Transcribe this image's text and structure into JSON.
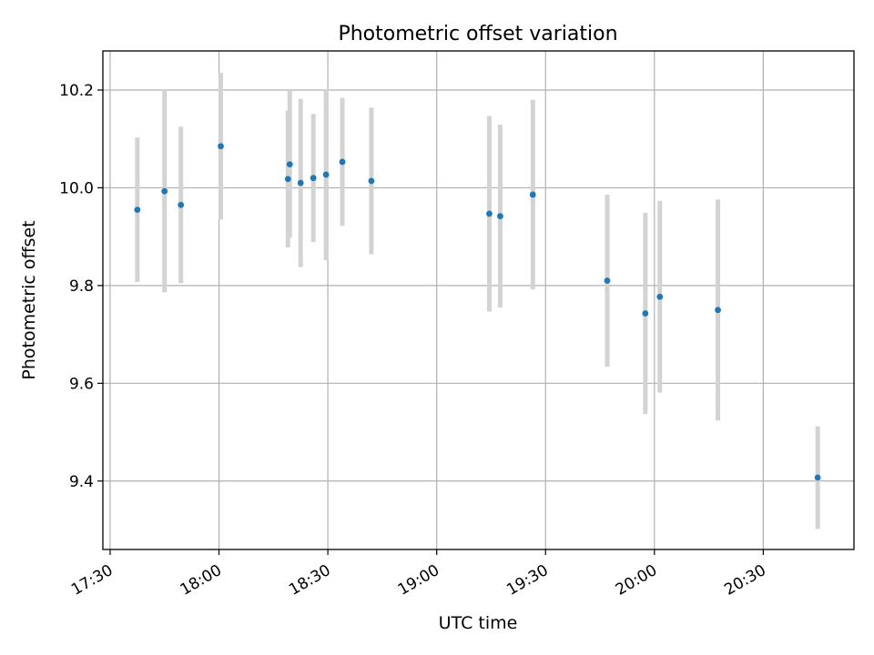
{
  "chart_data": {
    "type": "scatter",
    "title": "Photometric offset variation",
    "xlabel": "UTC time",
    "ylabel": "Photometric offset",
    "x_ticks": [
      "17:30",
      "18:00",
      "18:30",
      "19:00",
      "19:30",
      "20:00",
      "20:30"
    ],
    "y_ticks": [
      "9.4",
      "9.6",
      "9.8",
      "10.0",
      "10.2"
    ],
    "xlim": [
      "17:28",
      "20:55"
    ],
    "ylim": [
      9.26,
      10.28
    ],
    "grid": true,
    "point_color": "#1f77b4",
    "errorbar_color": "#d3d3d3",
    "points": [
      {
        "time": "17:37:30",
        "y": 9.955,
        "err": 0.148
      },
      {
        "time": "17:45:00",
        "y": 9.993,
        "err": 0.207
      },
      {
        "time": "17:49:30",
        "y": 9.965,
        "err": 0.16
      },
      {
        "time": "18:00:30",
        "y": 10.085,
        "err": 0.15
      },
      {
        "time": "18:19:00",
        "y": 10.018,
        "err": 0.14
      },
      {
        "time": "18:19:30",
        "y": 10.048,
        "err": 0.15
      },
      {
        "time": "18:22:30",
        "y": 10.01,
        "err": 0.172
      },
      {
        "time": "18:26:00",
        "y": 10.02,
        "err": 0.131
      },
      {
        "time": "18:29:30",
        "y": 10.027,
        "err": 0.175
      },
      {
        "time": "18:34:00",
        "y": 10.053,
        "err": 0.131
      },
      {
        "time": "18:42:00",
        "y": 10.014,
        "err": 0.15
      },
      {
        "time": "19:14:30",
        "y": 9.947,
        "err": 0.2
      },
      {
        "time": "19:17:30",
        "y": 9.942,
        "err": 0.187
      },
      {
        "time": "19:26:30",
        "y": 9.986,
        "err": 0.194
      },
      {
        "time": "19:47:00",
        "y": 9.81,
        "err": 0.176
      },
      {
        "time": "19:57:30",
        "y": 9.743,
        "err": 0.206
      },
      {
        "time": "20:01:30",
        "y": 9.777,
        "err": 0.196
      },
      {
        "time": "20:17:30",
        "y": 9.75,
        "err": 0.226
      },
      {
        "time": "20:45:00",
        "y": 9.407,
        "err": 0.105
      }
    ]
  }
}
